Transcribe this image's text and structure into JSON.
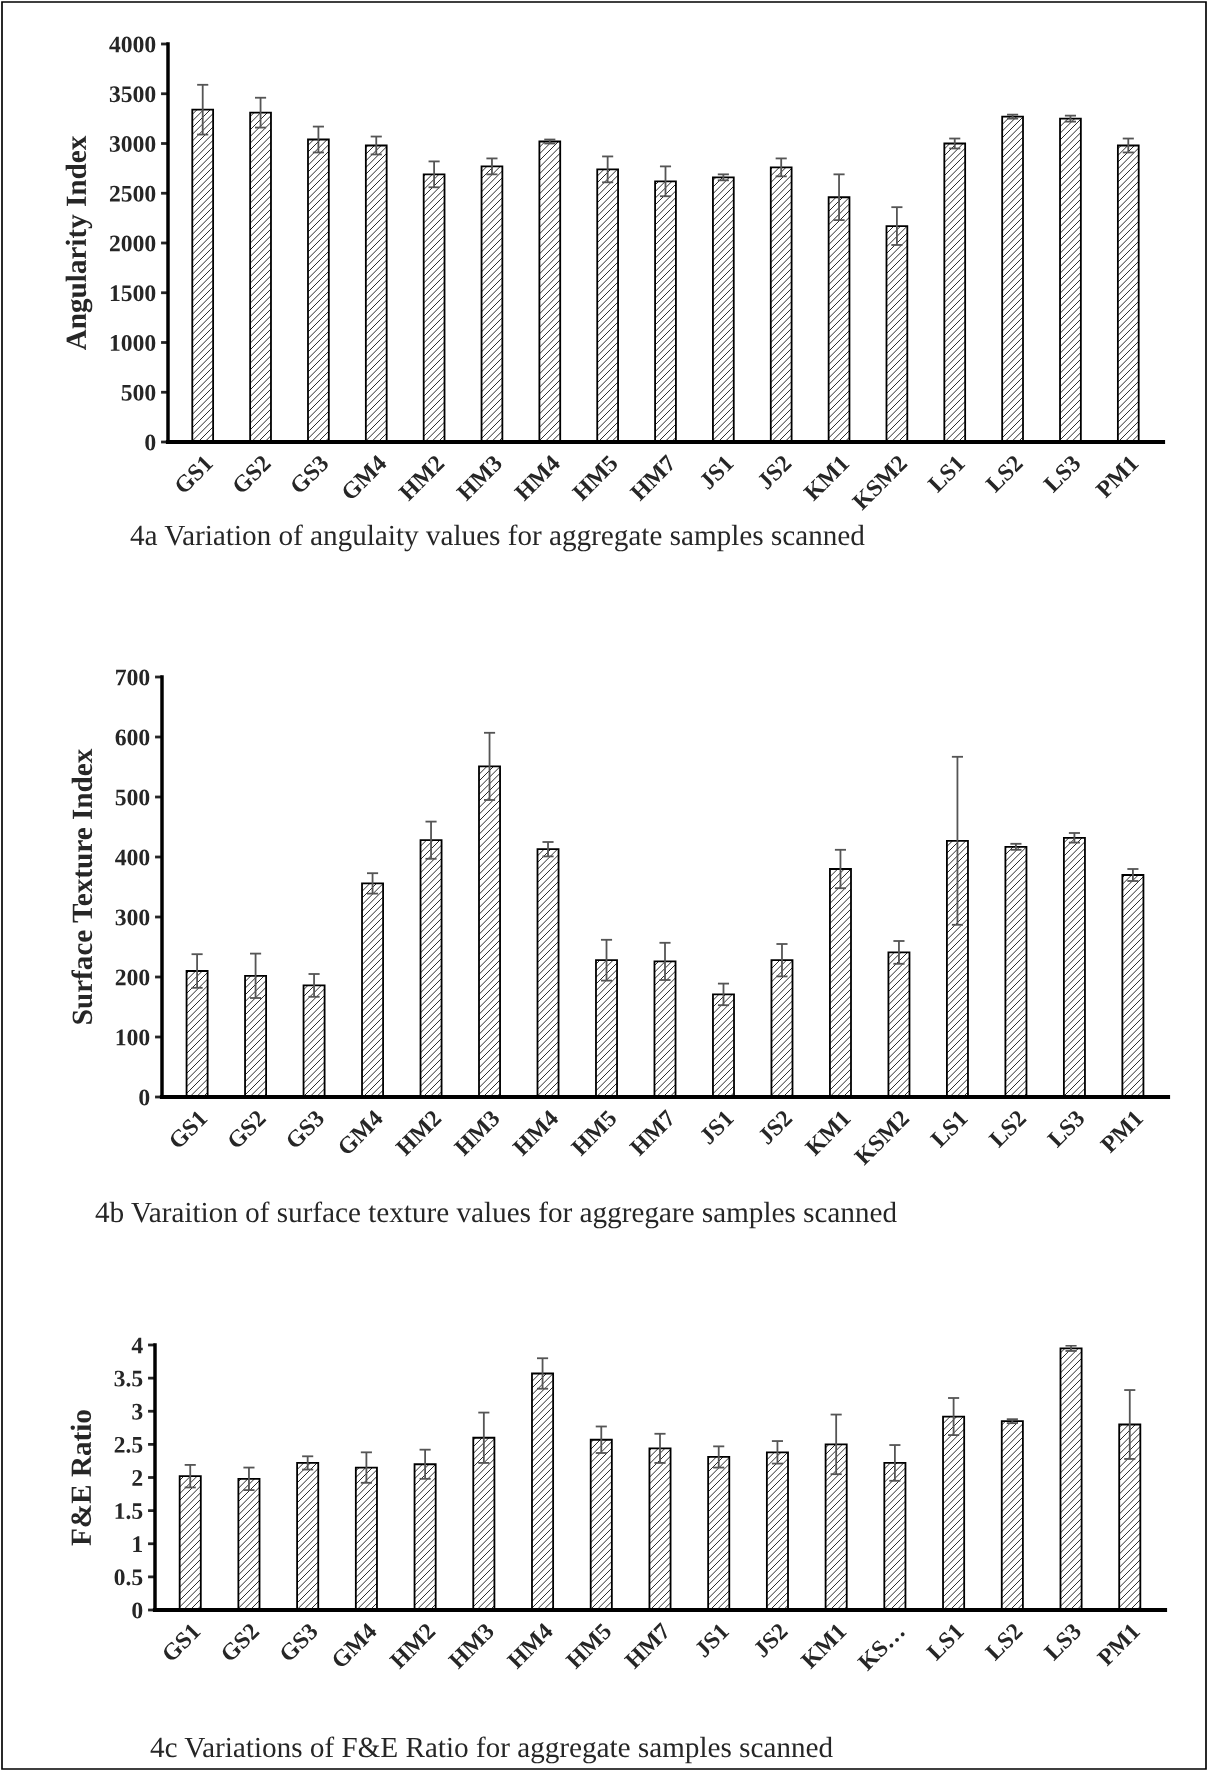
{
  "chart_data": [
    {
      "type": "bar",
      "ylabel": "Angularity Index",
      "categories": [
        "GS1",
        "GS2",
        "GS3",
        "GM4",
        "HM2",
        "HM3",
        "HM4",
        "HM5",
        "HM7",
        "JS1",
        "JS2",
        "KM1",
        "KSM2",
        "LS1",
        "LS2",
        "LS3",
        "PM1"
      ],
      "values": [
        3340,
        3310,
        3040,
        2980,
        2690,
        2770,
        3020,
        2740,
        2620,
        2660,
        2760,
        2460,
        2170,
        3000,
        3270,
        3250,
        2980
      ],
      "errors": [
        250,
        150,
        130,
        90,
        130,
        80,
        20,
        130,
        150,
        30,
        90,
        230,
        190,
        50,
        20,
        30,
        70
      ],
      "ylim": [
        0,
        4000
      ],
      "yticks": [
        0,
        500,
        1000,
        1500,
        2000,
        2500,
        3000,
        3500,
        4000
      ],
      "grid": false,
      "annotations": [
        "4a Variation of angulaity values for aggregate samples scanned"
      ]
    },
    {
      "type": "bar",
      "ylabel": "Surface Texture Index",
      "categories": [
        "GS1",
        "GS2",
        "GS3",
        "GM4",
        "HM2",
        "HM3",
        "HM4",
        "HM5",
        "HM7",
        "JS1",
        "JS2",
        "KM1",
        "KSM2",
        "LS1",
        "LS2",
        "LS3",
        "PM1"
      ],
      "values": [
        210,
        202,
        186,
        356,
        428,
        551,
        413,
        228,
        226,
        171,
        228,
        380,
        241,
        427,
        417,
        432,
        370
      ],
      "errors": [
        28,
        37,
        19,
        17,
        31,
        56,
        12,
        34,
        31,
        18,
        27,
        32,
        19,
        140,
        5,
        8,
        10
      ],
      "ylim": [
        0,
        700
      ],
      "yticks": [
        0,
        100,
        200,
        300,
        400,
        500,
        600,
        700
      ],
      "grid": false,
      "annotations": [
        "4b Varaition of surface texture values for aggregare samples scanned"
      ]
    },
    {
      "type": "bar",
      "ylabel": "F&E Ratio",
      "categories": [
        "GS1",
        "GS2",
        "GS3",
        "GM4",
        "HM2",
        "HM3",
        "HM4",
        "HM5",
        "HM7",
        "JS1",
        "JS2",
        "KM1",
        "KS…",
        "LS1",
        "LS2",
        "LS3",
        "PM1"
      ],
      "values": [
        2.02,
        1.98,
        2.22,
        2.15,
        2.2,
        2.6,
        3.57,
        2.57,
        2.44,
        2.31,
        2.38,
        2.5,
        2.22,
        2.92,
        2.85,
        3.95,
        2.8
      ],
      "errors": [
        0.17,
        0.17,
        0.1,
        0.23,
        0.22,
        0.38,
        0.23,
        0.2,
        0.22,
        0.16,
        0.17,
        0.45,
        0.27,
        0.28,
        0.03,
        0.04,
        0.52
      ],
      "ylim": [
        0,
        4
      ],
      "yticks": [
        0,
        0.5,
        1,
        1.5,
        2,
        2.5,
        3,
        3.5,
        4
      ],
      "grid": false,
      "annotations": [
        "4c Variations of F&E Ratio for aggregate samples scanned"
      ]
    }
  ]
}
